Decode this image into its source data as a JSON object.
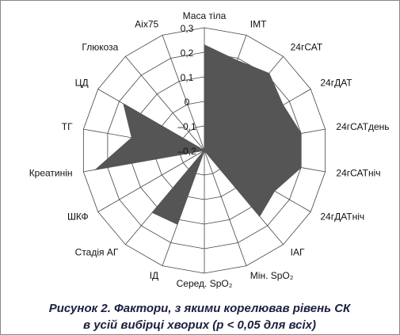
{
  "chart_data": {
    "type": "radar",
    "caption": [
      "Рисунок 2. Фактори, з якими корелював рівень СК",
      "в усій вибірці хворих (p < 0,05 для всіх)"
    ],
    "categories": [
      "Маса тіла",
      "ІМТ",
      "24гСАТ",
      "24гДАТ",
      "24гСАТдень",
      "24гСАТніч",
      "24гДАТніч",
      "ІАГ",
      "Мін. SpO₂",
      "Серед. SpO₂",
      "ІД",
      "Стадія АГ",
      "ШКФ",
      "Креатинін",
      "ТГ",
      "ЦД",
      "Глюкоза",
      "Aix75"
    ],
    "values": [
      0.23,
      0.19,
      0.21,
      0.17,
      0.2,
      0.2,
      0.13,
      0.15,
      -0.2,
      -0.2,
      0.12,
      0.13,
      -0.2,
      0.25,
      0.1,
      0.18,
      -0.2,
      -0.2
    ],
    "color": "#555555",
    "rlim": [
      -0.2,
      0.3
    ],
    "rticks": [
      {
        "value": 0.3,
        "label": "0,3"
      },
      {
        "value": 0.2,
        "label": "0,2"
      },
      {
        "value": 0.1,
        "label": "0,1"
      },
      0,
      {
        "value": -0.1,
        "label": "–0,1"
      },
      {
        "value": -0.2,
        "label": "–0,2"
      }
    ]
  }
}
